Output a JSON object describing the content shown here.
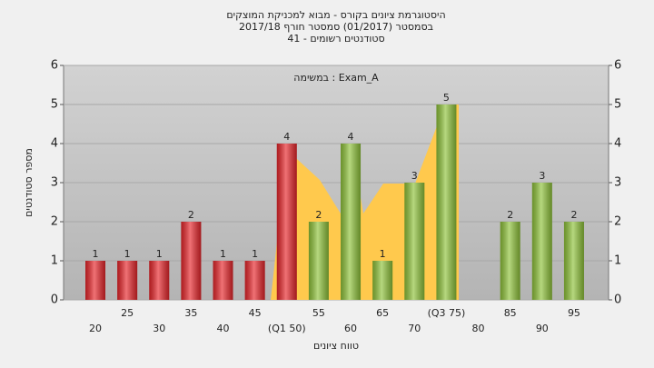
{
  "chart_data": {
    "type": "bar",
    "title": "היסטוגרמת ציונים בקורס - מבוא למכניקת המוצקים",
    "subtitle": "בסמסטר  (01/2017)  סמסטר חורף 2017/18",
    "subtitle2": "סטודנטים רשומים - 41",
    "annotation": "במשימה : Exam_A",
    "x_label": "טווח ציונים",
    "y_label": "מספר סטודנטים",
    "categories": [
      "20",
      "25",
      "30",
      "35",
      "40",
      "45",
      "(Q1 50)",
      "55",
      "60",
      "65",
      "70",
      "(Q3 75)",
      "80",
      "85",
      "90",
      "95"
    ],
    "values": [
      1,
      1,
      1,
      2,
      1,
      1,
      4,
      2,
      4,
      1,
      3,
      5,
      0,
      2,
      3,
      2
    ],
    "colors": [
      "#e8262b",
      "#e8262b",
      "#e8262b",
      "#e8262b",
      "#e8262b",
      "#e8262b",
      "#e8262b",
      "#8fc33a",
      "#8fc33a",
      "#8fc33a",
      "#8fc33a",
      "#8fc33a",
      "#8fc33a",
      "#8fc33a",
      "#8fc33a",
      "#8fc33a"
    ],
    "ylim": [
      0,
      6
    ],
    "yticks": [
      0,
      1,
      2,
      3,
      4,
      5,
      6
    ],
    "y2lim": [
      0,
      6
    ],
    "y2ticks": [
      0,
      1,
      2,
      3,
      4,
      5,
      6
    ],
    "grid": true
  }
}
